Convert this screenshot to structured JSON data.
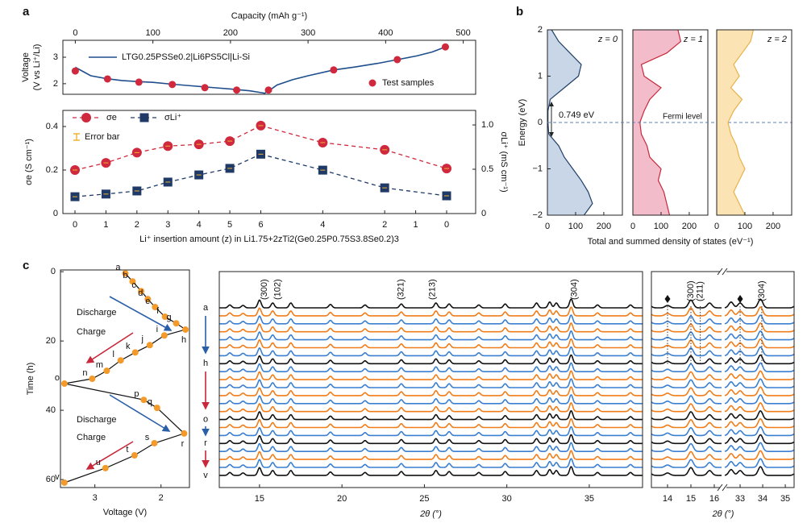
{
  "panel_labels": [
    "a",
    "b",
    "c"
  ],
  "chart_data": [
    {
      "type": "line",
      "xlabel": "Capacity (mAh g⁻¹)",
      "ylabel": [
        "Voltage",
        "(V vs Li⁺/Li)"
      ],
      "xlim": [
        -16,
        516
      ],
      "xticks": [
        0,
        100,
        200,
        300,
        400,
        500
      ],
      "ylim": [
        1.6,
        3.64
      ],
      "yticks": [
        2,
        3
      ],
      "series": [
        {
          "name": "LTG0.25PSSe0.2|Li6PS5Cl|Li-Si",
          "color": "#1f4e8c",
          "x": [
            0,
            20,
            40,
            60,
            80,
            100,
            125,
            150,
            175,
            200,
            225,
            240,
            244,
            248,
            260,
            280,
            300,
            333,
            360,
            390,
            415,
            440,
            460,
            478
          ],
          "values": [
            2.62,
            2.3,
            2.19,
            2.12,
            2.08,
            2.05,
            1.98,
            1.92,
            1.86,
            1.8,
            1.73,
            1.66,
            1.64,
            1.7,
            1.95,
            2.15,
            2.3,
            2.52,
            2.63,
            2.77,
            2.91,
            3.05,
            3.2,
            3.4
          ]
        },
        {
          "name": "Test samples",
          "type": "scatter",
          "color": "#d0283c",
          "x": [
            0,
            41.5,
            82,
            125,
            167,
            208,
            249,
            333,
            415,
            477
          ],
          "values": [
            2.48,
            2.18,
            2.06,
            1.97,
            1.85,
            1.76,
            1.76,
            2.52,
            2.91,
            3.39
          ]
        }
      ]
    },
    {
      "type": "line",
      "categories": [
        "0",
        "1",
        "2",
        "3",
        "4",
        "5",
        "6",
        null,
        "4",
        null,
        "2",
        "1",
        "0"
      ],
      "xlabel": "Li⁺ insertion amount (z) in Li1.75+2zTi2(Ge0.25P0.75S3.8Se0.2)3",
      "ylabel": "σe (S cm⁻¹)",
      "y2label": "σLi⁺ (mS cm⁻¹)",
      "ylim": [
        0,
        0.474
      ],
      "yticks": [
        0,
        0.2,
        0.4
      ],
      "y2lim": [
        0,
        1.164
      ],
      "y2ticks": [
        0,
        0.5,
        {
          "value": 1,
          "label": "1.0"
        }
      ],
      "annotation": "Error bar",
      "series": [
        {
          "name": "σe",
          "color": "#d0283c",
          "marker": "circle",
          "values": [
            0.2,
            0.233,
            0.28,
            0.31,
            0.318,
            0.333,
            0.404,
            null,
            0.326,
            null,
            0.293,
            null,
            0.207
          ]
        },
        {
          "name": "σLi⁺",
          "color": "#1f3a66",
          "marker": "square",
          "axis": "y2",
          "values": [
            0.19,
            0.22,
            0.255,
            0.355,
            0.436,
            0.51,
            0.67,
            null,
            0.49,
            null,
            0.29,
            null,
            0.2
          ]
        }
      ]
    },
    {
      "type": "area",
      "orientation": "horizontal",
      "title": "z = 0",
      "ylabel": "Energy (eV)",
      "annotation": "0.749 eV",
      "color": "#c9d6e8",
      "line_color": "#1f3f66",
      "x": [
        2,
        1.75,
        1.5,
        1.25,
        1,
        0.75,
        0.5,
        0.25,
        0,
        -0.25,
        -0.5,
        -0.75,
        -1,
        -1.25,
        -1.5,
        -1.75,
        -2
      ],
      "values": [
        15,
        40,
        80,
        120,
        110,
        60,
        10,
        2,
        2,
        5,
        40,
        60,
        90,
        120,
        145,
        160,
        130
      ],
      "xlim": [
        0,
        266
      ],
      "xticks": [
        0,
        100,
        200
      ],
      "ylim": [
        -2,
        2
      ],
      "yticks": [
        {
          "value": -2,
          "label": "−2"
        },
        {
          "value": -1,
          "label": "−1"
        },
        0,
        1,
        2
      ]
    },
    {
      "type": "area",
      "orientation": "horizontal",
      "title": "z = 1",
      "annotation": "Fermi level",
      "fermi_level": 0,
      "xlabel": "Total and summed density of states (eV⁻¹)",
      "color": "#f3bccb",
      "line_color": "#c8283c",
      "x": [
        2,
        1.75,
        1.5,
        1.25,
        1,
        0.75,
        0.5,
        0.25,
        0,
        -0.25,
        -0.5,
        -0.75,
        -1,
        -1.25,
        -1.5,
        -1.75,
        -2
      ],
      "values": [
        160,
        170,
        120,
        30,
        40,
        100,
        60,
        40,
        25,
        30,
        50,
        60,
        100,
        90,
        110,
        120,
        130
      ],
      "xlim": [
        0,
        266
      ],
      "xticks": [
        0,
        100,
        200
      ],
      "ylim": [
        -2,
        2
      ]
    },
    {
      "type": "area",
      "orientation": "horizontal",
      "title": "z = 2",
      "color": "#fbe3b3",
      "line_color": "#e8b24a",
      "x": [
        2,
        1.75,
        1.5,
        1.25,
        1,
        0.75,
        0.5,
        0.25,
        0,
        -0.25,
        -0.5,
        -0.75,
        -1,
        -1.25,
        -1.5,
        -1.75,
        -2
      ],
      "values": [
        130,
        120,
        90,
        60,
        80,
        50,
        90,
        60,
        40,
        50,
        70,
        80,
        100,
        80,
        60,
        80,
        100
      ],
      "xlim": [
        0,
        266
      ],
      "xticks": [
        0,
        100,
        200
      ],
      "ylim": [
        -2,
        2
      ]
    },
    {
      "type": "line",
      "xlabel": "Voltage (V)",
      "ylabel": "Time (h)",
      "color": "#f39a2b",
      "annotations": [
        "Discharge",
        "Charge",
        "Discharge",
        "Charge"
      ],
      "point_labels": [
        "a",
        "b",
        "c",
        "d",
        "e",
        "f",
        "g",
        "h",
        "i",
        "j",
        "k",
        "l",
        "m",
        "n",
        "o",
        "p",
        "q",
        "r",
        "s",
        "t",
        "u",
        "v"
      ],
      "x": [
        2.54,
        2.43,
        2.3,
        2.2,
        2.09,
        1.94,
        1.77,
        1.63,
        1.95,
        2.17,
        2.39,
        2.61,
        2.82,
        3.04,
        3.46,
        2.26,
        2.06,
        1.65,
        2.1,
        2.4,
        2.84,
        3.46
      ],
      "values": [
        0.5,
        2.8,
        5.6,
        7.9,
        10.2,
        13,
        14.9,
        16.7,
        18.4,
        21.2,
        23.3,
        25.6,
        28.6,
        30.9,
        32.3,
        37,
        39.3,
        46.7,
        49.5,
        53,
        56.7,
        60.9
      ],
      "xlim": [
        3.52,
        1.57
      ],
      "xticks": [
        3,
        2
      ],
      "ylim": [
        -0.5,
        62.3
      ],
      "y_inverted": true,
      "yticks": [
        0,
        20,
        40,
        60
      ]
    },
    {
      "type": "xrd",
      "xlabel": "2θ (°)",
      "xlim": [
        12.56,
        38.23
      ],
      "xticks": [
        15,
        20,
        25,
        30,
        35
      ],
      "row_labels": [
        "a",
        null,
        null,
        null,
        null,
        null,
        null,
        "h",
        null,
        null,
        null,
        null,
        null,
        null,
        "o",
        null,
        null,
        "r",
        null,
        null,
        null,
        "v"
      ],
      "row_colors": [
        "#111",
        "#f07d1a",
        "#3a7fd0",
        "#f07d1a",
        "#3a7fd0",
        "#f07d1a",
        "#3a7fd0",
        "#111",
        "#3a7fd0",
        "#f07d1a",
        "#3a7fd0",
        "#f07d1a",
        "#3a7fd0",
        "#f07d1a",
        "#111",
        "#f07d1a",
        "#3a7fd0",
        "#111",
        "#3a7fd0",
        "#f07d1a",
        "#3a7fd0",
        "#111"
      ],
      "peaks": [
        {
          "x": 13.2,
          "height": 0.3
        },
        {
          "x": 14.0,
          "height": 0.25
        },
        {
          "x": 15.0,
          "height": 0.8
        },
        {
          "x": 15.8,
          "height": 0.5
        },
        {
          "x": 16.9,
          "height": 0.5
        },
        {
          "x": 19.3,
          "height": 0.35
        },
        {
          "x": 21.4,
          "height": 0.3
        },
        {
          "x": 23.6,
          "height": 0.4
        },
        {
          "x": 25.7,
          "height": 0.5
        },
        {
          "x": 26.5,
          "height": 0.4
        },
        {
          "x": 28.3,
          "height": 0.3
        },
        {
          "x": 29.9,
          "height": 0.4
        },
        {
          "x": 31.8,
          "height": 0.5
        },
        {
          "x": 32.6,
          "height": 0.6
        },
        {
          "x": 33.0,
          "height": 0.5
        },
        {
          "x": 33.9,
          "height": 0.9
        },
        {
          "x": 35.5,
          "height": 0.3
        },
        {
          "x": 37.5,
          "height": 0.3
        }
      ],
      "annotations": [
        {
          "text": "(300)",
          "x": 15.3
        },
        {
          "text": "(102)",
          "x": 16.1
        },
        {
          "text": "(321)",
          "x": 23.6
        },
        {
          "text": "(213)",
          "x": 25.5
        },
        {
          "text": "(304)",
          "x": 34.1
        }
      ]
    },
    {
      "type": "xrd_zoom",
      "xlabel": "2θ (°)",
      "segments": [
        {
          "xlim": [
            13.31,
            16.31
          ],
          "xticks": [
            14,
            15,
            16
          ]
        },
        {
          "xlim": [
            32.32,
            35.39
          ],
          "xticks": [
            33,
            34,
            35
          ]
        }
      ],
      "markers": [
        14.0,
        33.0
      ],
      "annotations": [
        {
          "text": "(300)",
          "x": 15.0
        },
        {
          "text": "(211)",
          "x": 15.4
        },
        {
          "text": "(304)",
          "x": 33.96
        }
      ]
    }
  ]
}
